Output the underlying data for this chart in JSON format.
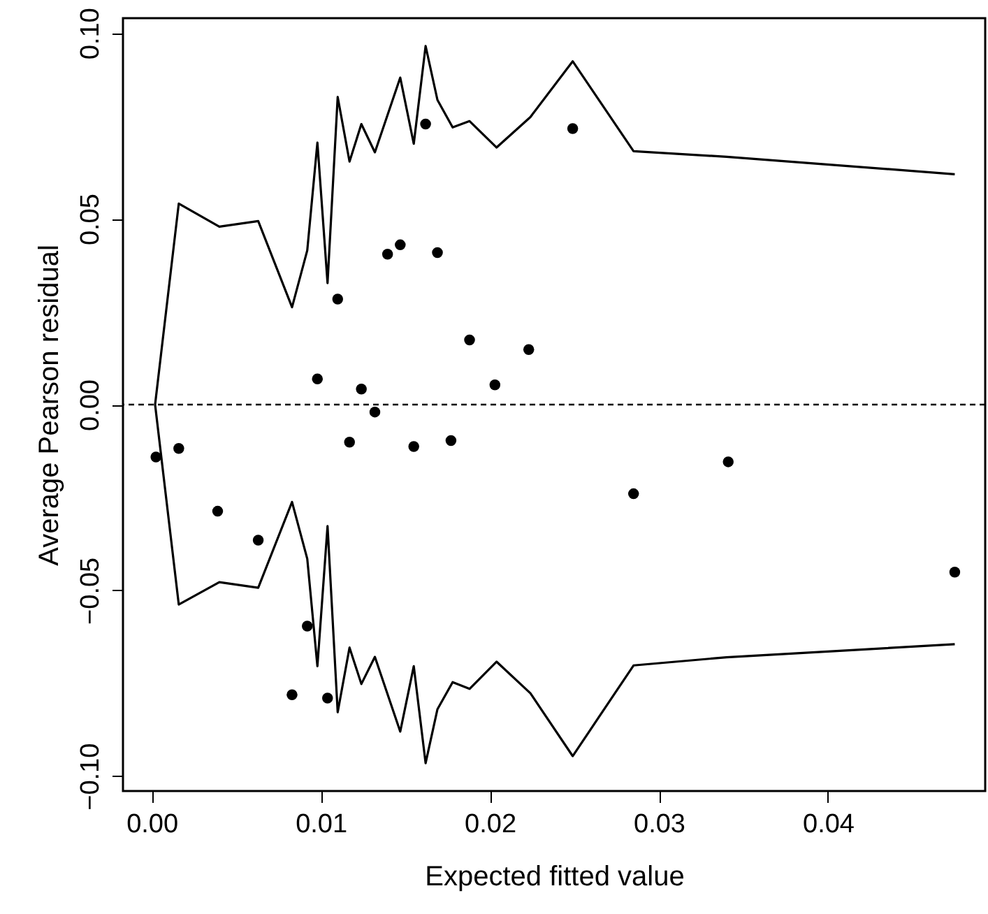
{
  "chart_data": {
    "type": "scatter",
    "xlabel": "Expected fitted value",
    "ylabel": "Average Pearson residual",
    "xlim": [
      -0.0017,
      0.0493
    ],
    "ylim": [
      -0.104,
      0.104
    ],
    "xticks": [
      {
        "value": 0,
        "label": "0.00"
      },
      {
        "value": 0.01,
        "label": "0.01"
      },
      {
        "value": 0.02,
        "label": "0.02"
      },
      {
        "value": 0.03,
        "label": "0.03"
      },
      {
        "value": 0.04,
        "label": "0.04"
      }
    ],
    "yticks": [
      {
        "value": -0.1,
        "label": "−0.10"
      },
      {
        "value": -0.05,
        "label": "−0.05"
      },
      {
        "value": 0,
        "label": "0.00"
      },
      {
        "value": 0.05,
        "label": "0.05"
      },
      {
        "value": 0.1,
        "label": "0.10"
      }
    ],
    "grid": false,
    "marker": "circle",
    "ref_lines": [
      {
        "axis": "y",
        "value": 0,
        "line_style": "dashed",
        "color": "#000000"
      }
    ],
    "series": [
      {
        "color": "#000000",
        "x": [
          0.00025,
          0.0016,
          0.0039,
          0.0063,
          0.0083,
          0.0092,
          0.0098,
          0.0104,
          0.011,
          0.0117,
          0.0124,
          0.0132,
          0.01395,
          0.0147,
          0.0155,
          0.0162,
          0.0169,
          0.0177,
          0.0188,
          0.0203,
          0.0223,
          0.0249,
          0.0285,
          0.0341,
          0.0475
        ],
        "values": [
          -0.0141,
          -0.0118,
          -0.0287,
          -0.0365,
          -0.0781,
          -0.0596,
          0.0069,
          -0.079,
          0.0284,
          -0.0101,
          0.0042,
          -0.002,
          0.0405,
          0.043,
          -0.0113,
          0.0755,
          0.0409,
          -0.0097,
          0.0174,
          0.0053,
          0.0148,
          0.0743,
          -0.024,
          -0.0154,
          -0.0451
        ]
      },
      {
        "type": "line",
        "color": "#000000",
        "line_style": "solid",
        "marker": "none",
        "x": [
          0.0475,
          0.034,
          0.0285,
          0.0249,
          0.0224,
          0.0204,
          0.0188,
          0.0178,
          0.0169,
          0.0162,
          0.0155,
          0.0147,
          0.0132,
          0.0124,
          0.0117,
          0.011,
          0.0104,
          0.0098,
          0.0092,
          0.0083,
          0.0063,
          0.004,
          0.0016,
          0.0002,
          0.0016,
          0.004,
          0.0063,
          0.0083,
          0.0092,
          0.0098,
          0.0104,
          0.011,
          0.0117,
          0.0124,
          0.0132,
          0.0147,
          0.0155,
          0.0162,
          0.0169,
          0.0178,
          0.0188,
          0.0204,
          0.0224,
          0.0249,
          0.0285,
          0.034,
          0.0475
        ],
        "values": [
          -0.0645,
          -0.068,
          -0.0702,
          -0.0946,
          -0.0777,
          -0.0692,
          -0.0765,
          -0.0747,
          -0.082,
          -0.0965,
          -0.0704,
          -0.088,
          -0.0679,
          -0.0752,
          -0.0654,
          -0.0828,
          -0.0327,
          -0.0704,
          -0.0415,
          -0.0262,
          -0.0493,
          -0.0478,
          -0.0538,
          0,
          0.0541,
          0.0479,
          0.0494,
          0.0262,
          0.0415,
          0.0705,
          0.0327,
          0.0828,
          0.0654,
          0.0755,
          0.0679,
          0.088,
          0.0702,
          0.0965,
          0.082,
          0.0746,
          0.0763,
          0.0692,
          0.0774,
          0.0924,
          0.0682,
          0.0667,
          0.062
        ]
      }
    ]
  }
}
